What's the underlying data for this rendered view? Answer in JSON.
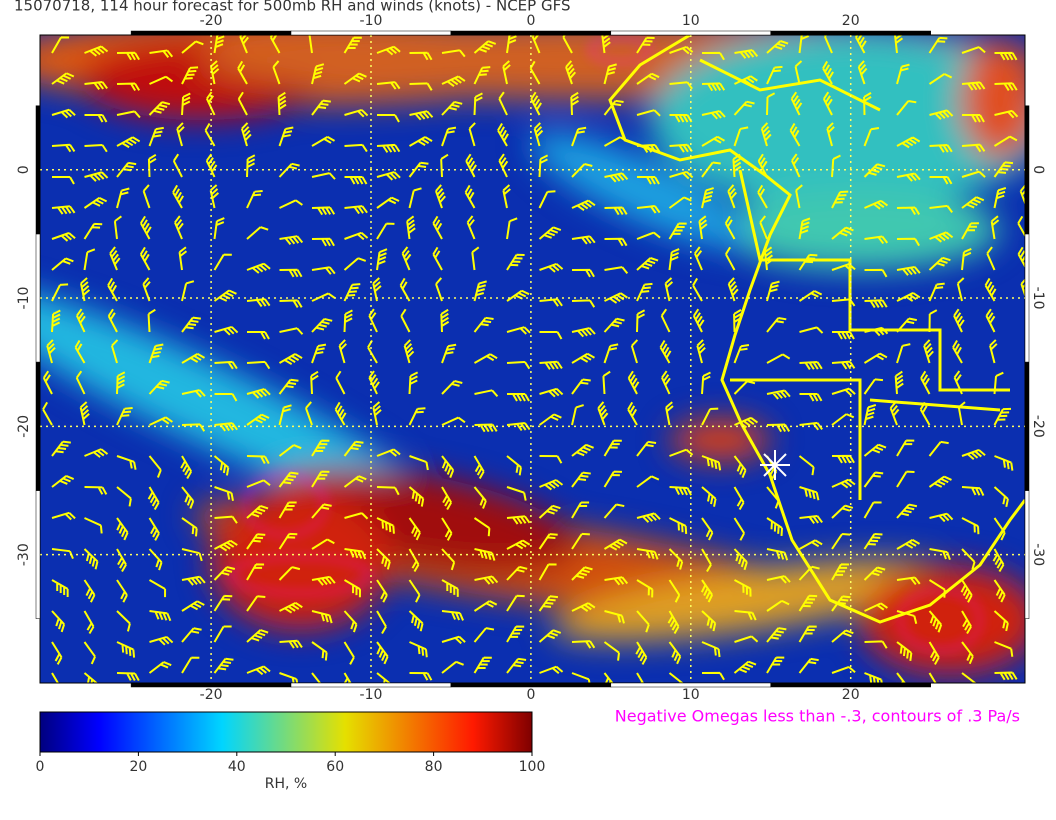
{
  "title": "15070718, 114 hour forecast for 500mb RH and winds (knots) - NCEP GFS",
  "map": {
    "xlim": [
      -30.7,
      30.9
    ],
    "ylim": [
      -40,
      10.5
    ],
    "xticks": [
      -20,
      -10,
      0,
      10,
      20
    ],
    "yticks": [
      0,
      -10,
      -20,
      -30
    ]
  },
  "colorbar": {
    "label": "RH, %",
    "lim": [
      0,
      100
    ],
    "ticks": [
      0,
      20,
      40,
      60,
      80,
      100
    ]
  },
  "annotation": "Negative Omegas less than -.3, contours of .3 Pa/s"
}
